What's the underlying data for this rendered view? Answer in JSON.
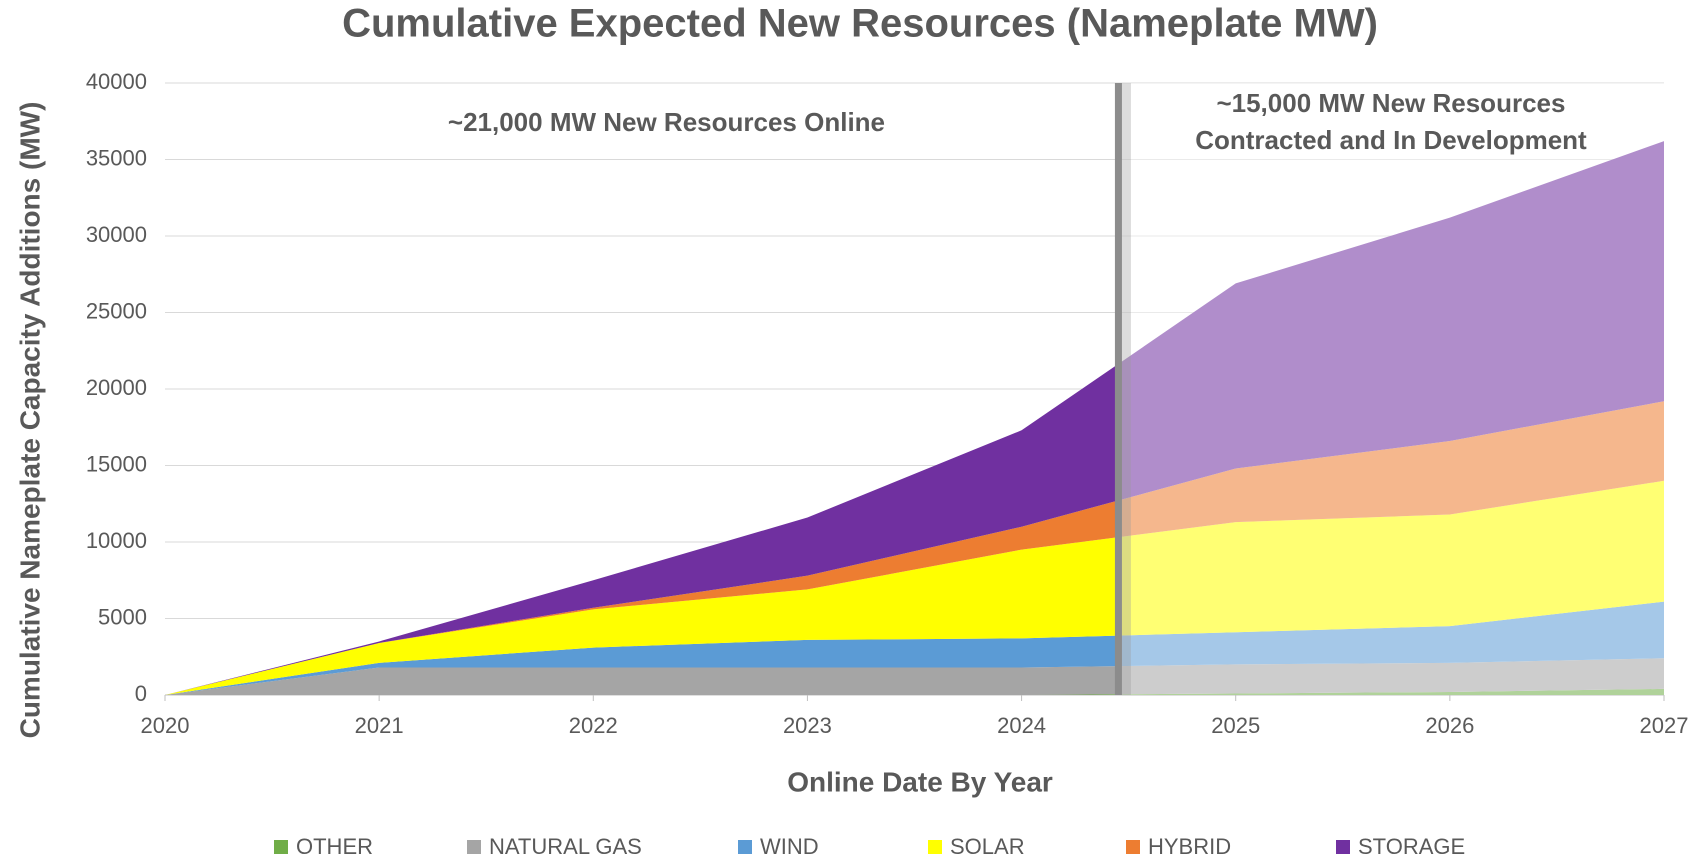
{
  "chart_data": {
    "type": "stacked_area",
    "title": "Cumulative Expected New Resources (Nameplate MW)",
    "xlabel": "Online Date By Year",
    "ylabel": "Cumulative Nameplate Capacity Additions (MW)",
    "x": [
      2020,
      2021,
      2022,
      2023,
      2024,
      2025,
      2026,
      2027
    ],
    "xlim": [
      2020,
      2027
    ],
    "xticks": [
      2020,
      2021,
      2022,
      2023,
      2024,
      2025,
      2026,
      2027
    ],
    "ylim": [
      0,
      40000
    ],
    "yticks": [
      0,
      5000,
      10000,
      15000,
      20000,
      25000,
      30000,
      35000,
      40000
    ],
    "grid": true,
    "legend": "bottom",
    "divider_x": 2024.45,
    "annotations": [
      {
        "lines": [
          "~21,000 MW New Resources Online"
        ]
      },
      {
        "lines": [
          "~15,000 MW New Resources",
          "Contracted and In Development"
        ]
      }
    ],
    "series": [
      {
        "name": "OTHER",
        "color": "#70ad47",
        "values": [
          0,
          0,
          0,
          0,
          0,
          100,
          200,
          400
        ]
      },
      {
        "name": "NATURAL GAS",
        "color": "#a5a5a5",
        "values": [
          0,
          1800,
          1800,
          1800,
          1800,
          1900,
          1900,
          2000
        ]
      },
      {
        "name": "WIND",
        "color": "#5b9bd5",
        "values": [
          0,
          300,
          1300,
          1800,
          1900,
          2100,
          2400,
          3700
        ]
      },
      {
        "name": "SOLAR",
        "color": "#ffff00",
        "values": [
          0,
          1300,
          2500,
          3300,
          5800,
          7200,
          7300,
          7900
        ]
      },
      {
        "name": "HYBRID",
        "color": "#ed7d31",
        "values": [
          0,
          0,
          100,
          900,
          1500,
          3500,
          4800,
          5200
        ]
      },
      {
        "name": "STORAGE",
        "color": "#7030a0",
        "values": [
          0,
          100,
          1800,
          3800,
          6300,
          12100,
          14600,
          17000
        ]
      }
    ]
  }
}
